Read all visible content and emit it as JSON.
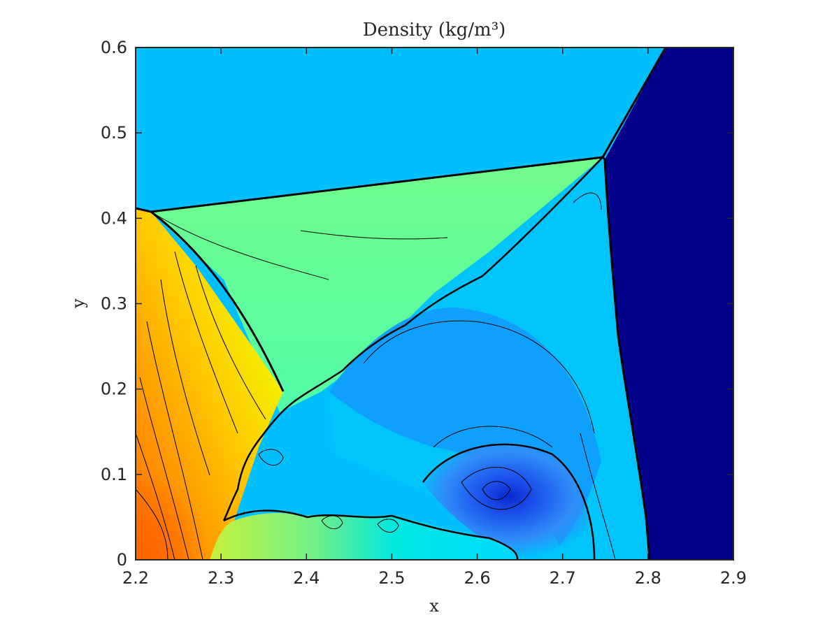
{
  "chart_data": {
    "type": "contour",
    "title": "Density (kg/m³)",
    "xlabel": "x",
    "ylabel": "y",
    "xlim": [
      2.2,
      2.9
    ],
    "ylim": [
      0,
      0.6
    ],
    "xticks": [
      "2.2",
      "2.3",
      "2.4",
      "2.5",
      "2.6",
      "2.7",
      "2.8",
      "2.9"
    ],
    "yticks": [
      "0",
      "0.1",
      "0.2",
      "0.3",
      "0.4",
      "0.5",
      "0.6"
    ],
    "colormap": "jet",
    "grid": false,
    "features": [
      {
        "label": "incident shock",
        "from": [
          2.75,
          0.47
        ],
        "to": [
          2.823,
          0.6
        ]
      },
      {
        "label": "Mach stem",
        "from": [
          2.75,
          0.47
        ],
        "to": [
          2.8,
          0.0
        ]
      },
      {
        "label": "reflected shock",
        "from": [
          2.2,
          0.41
        ],
        "to": [
          2.75,
          0.47
        ]
      },
      {
        "label": "slip line",
        "from": [
          2.75,
          0.47
        ],
        "to": [
          2.31,
          0.05
        ]
      },
      {
        "label": "bow shock",
        "from": [
          2.22,
          0.405
        ],
        "to": [
          2.38,
          0.2
        ]
      }
    ],
    "regions": [
      {
        "label": "pre-shock",
        "color": "#00008b"
      },
      {
        "label": "upper post-shock",
        "color": "#00bfff"
      },
      {
        "label": "reflected-shock wedge",
        "color": "#6ef08a"
      },
      {
        "label": "behind Mach stem",
        "color": "#00c4fc"
      },
      {
        "label": "vortex core",
        "color": "#0a36e0"
      },
      {
        "label": "high-density corner",
        "color": "#ff6a00"
      }
    ]
  }
}
